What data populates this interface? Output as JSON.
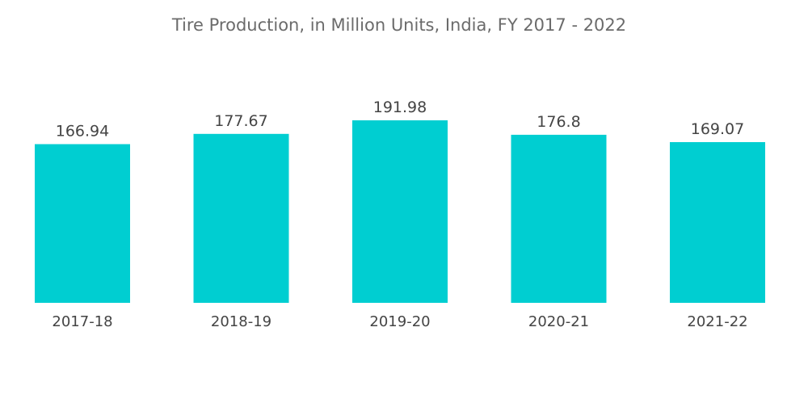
{
  "chart_data": {
    "type": "bar",
    "title": "Tire Production, in Million Units, India, FY 2017 - 2022",
    "xlabel": "",
    "ylabel": "",
    "categories": [
      "2017-18",
      "2018-19",
      "2019-20",
      "2020-21",
      "2021-22"
    ],
    "values": [
      166.94,
      177.67,
      191.98,
      176.8,
      169.07
    ],
    "value_labels": [
      "166.94",
      "177.67",
      "191.98",
      "176.8",
      "169.07"
    ],
    "ylim": [
      0,
      191.98
    ],
    "grid": false,
    "legend": "none",
    "bar_color": "#00ced1"
  }
}
